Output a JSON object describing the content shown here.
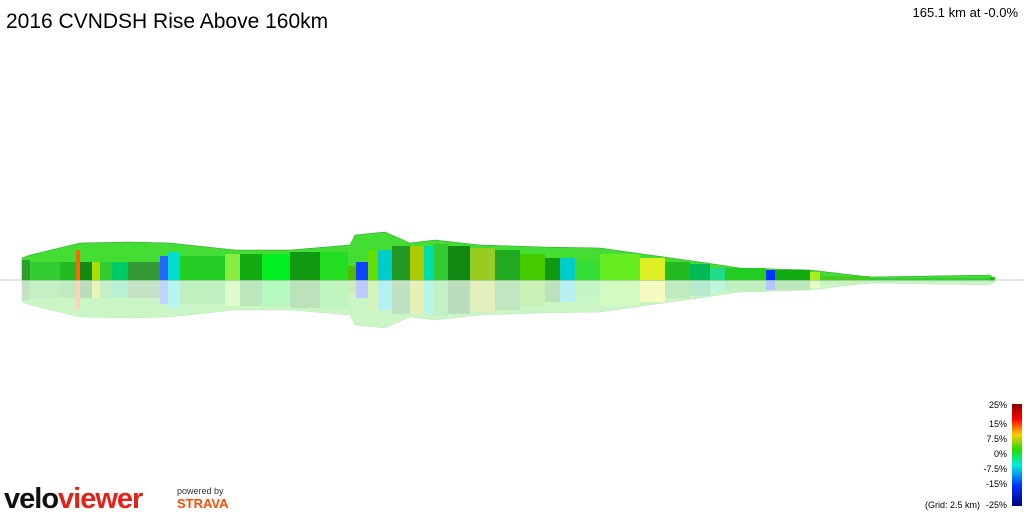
{
  "title": "2016 CVNDSH Rise Above 160km",
  "summary": "165.1 km at -0.0%",
  "legend": {
    "labels": [
      "25%",
      "15%",
      "7.5%",
      "0%",
      "-7.5%",
      "-15%",
      "-25%"
    ],
    "grid_note": "(Grid: 2.5 km)"
  },
  "branding": {
    "logo_velo": "velo",
    "logo_viewer": "viewer",
    "powered_by": "powered by",
    "strava": "STRAVA"
  }
}
